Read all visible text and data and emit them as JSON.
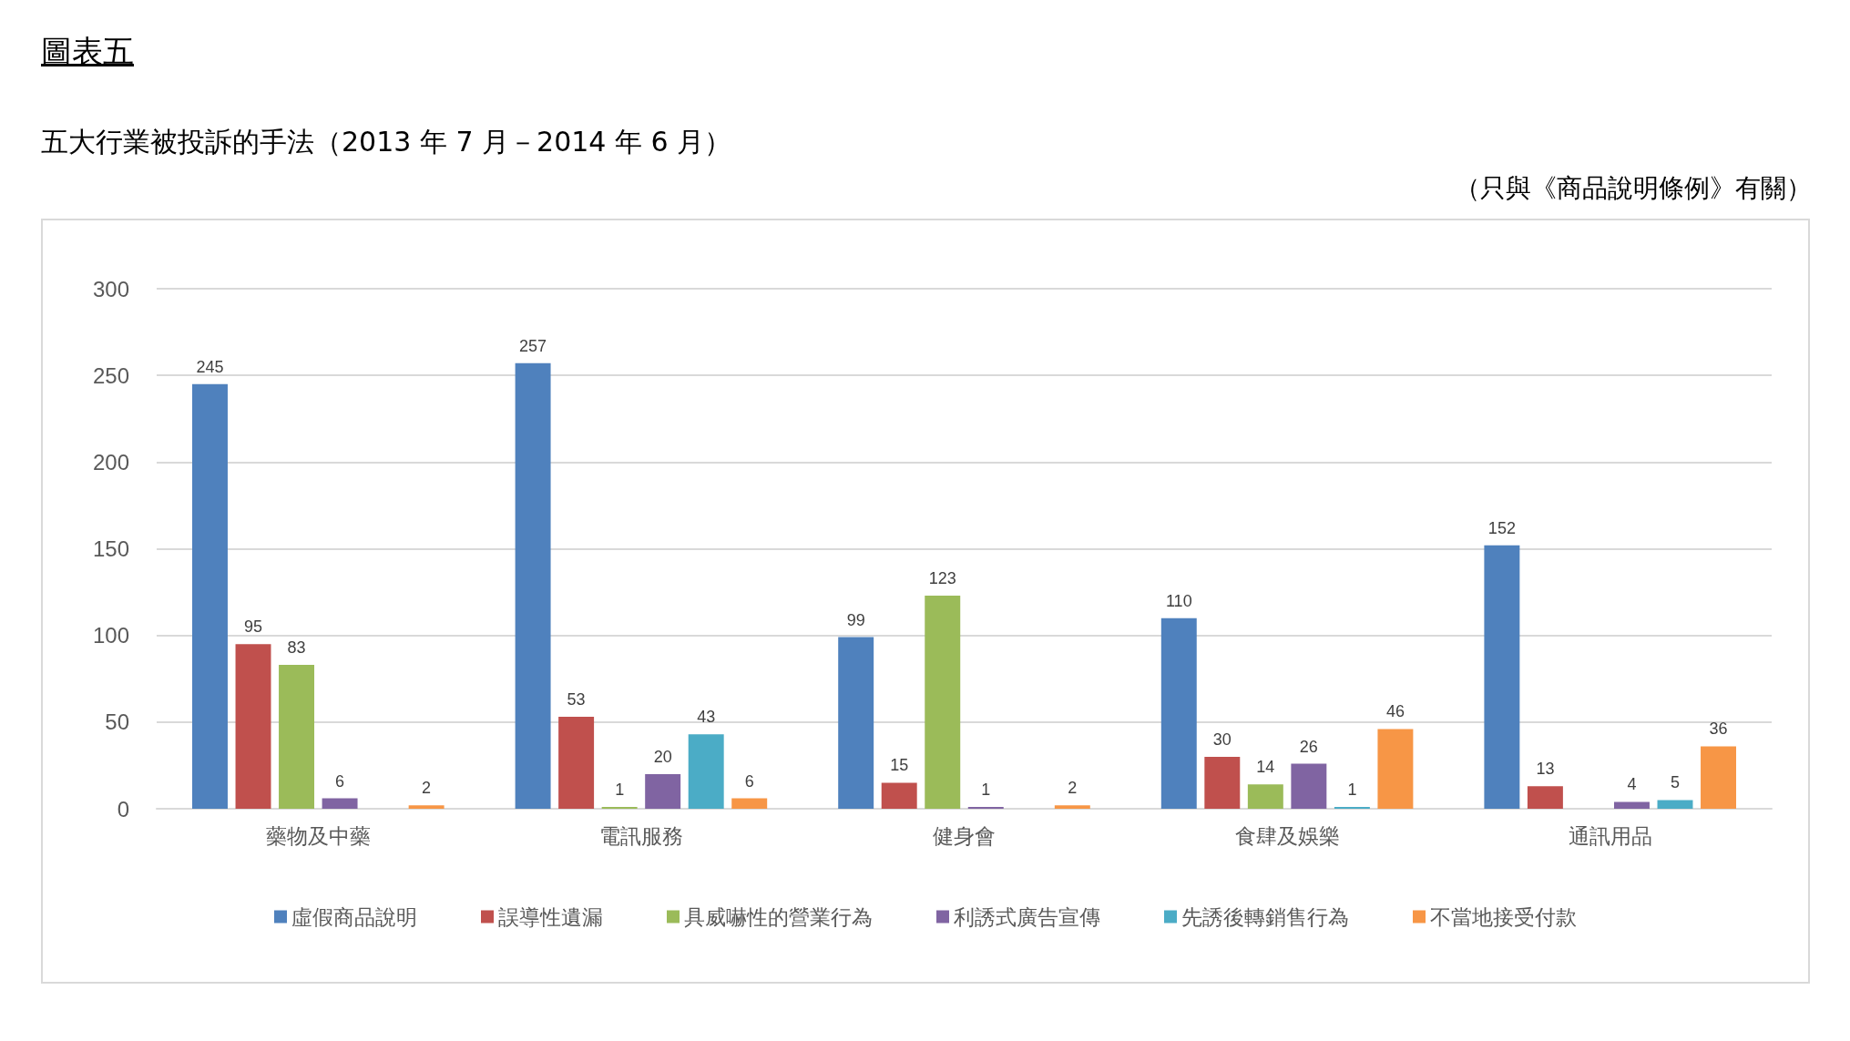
{
  "chart_data": {
    "type": "bar",
    "title": "圖表五",
    "subtitle": "五大行業被投訴的手法（2013 年 7 月－2014 年 6 月）",
    "annotations": [
      "（只與《商品說明條例》有關）"
    ],
    "categories": [
      "藥物及中藥",
      "電訊服務",
      "健身會",
      "食肆及娛樂",
      "通訊用品"
    ],
    "series": [
      {
        "name": "虛假商品說明",
        "color": "#4f81bd",
        "values": [
          245,
          257,
          99,
          110,
          152
        ]
      },
      {
        "name": "誤導性遺漏",
        "color": "#c0504d",
        "values": [
          95,
          53,
          15,
          30,
          13
        ]
      },
      {
        "name": "具威嚇性的營業行為",
        "color": "#9bbb59",
        "values": [
          83,
          1,
          123,
          14,
          null
        ]
      },
      {
        "name": "利誘式廣告宣傳",
        "color": "#8064a2",
        "values": [
          6,
          20,
          1,
          26,
          4
        ]
      },
      {
        "name": "先誘後轉銷售行為",
        "color": "#4bacc6",
        "values": [
          null,
          43,
          null,
          1,
          5
        ]
      },
      {
        "name": "不當地接受付款",
        "color": "#f79646",
        "values": [
          2,
          6,
          2,
          46,
          36
        ]
      }
    ],
    "ylim": [
      0,
      300
    ],
    "yticks": [
      0,
      50,
      100,
      150,
      200,
      250,
      300
    ],
    "grid": "y",
    "legend": "bottom",
    "data_labels": true
  }
}
